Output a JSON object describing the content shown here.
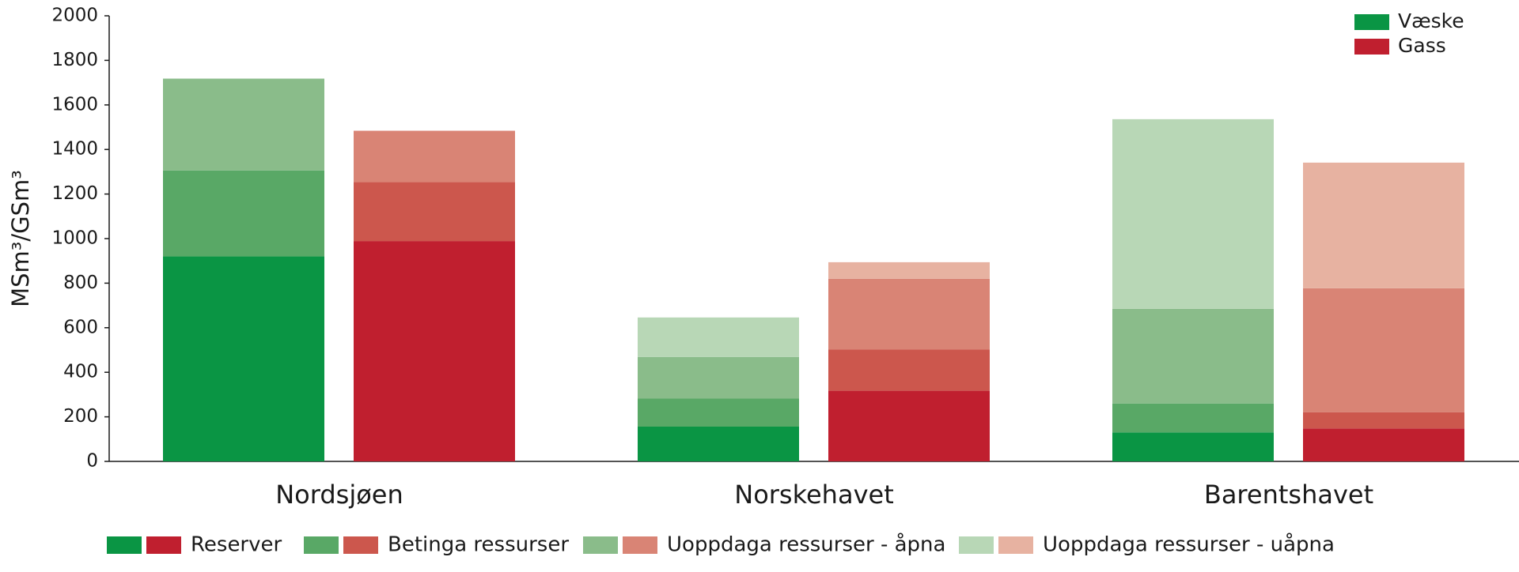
{
  "chart_data": {
    "type": "grouped-stacked-bar",
    "y_label": "MSm³/GSm³",
    "categories": [
      "Nordsjøen",
      "Norskehavet",
      "Barentshavet"
    ],
    "groups": [
      {
        "name": "Væske",
        "color": "#0a9544"
      },
      {
        "name": "Gass",
        "color": "#c01f2f"
      }
    ],
    "series": [
      {
        "name": "Reserver",
        "colors": [
          "#0a9544",
          "#c01f2f"
        ],
        "values": [
          [
            920,
            156,
            130
          ],
          [
            989,
            317,
            148
          ]
        ]
      },
      {
        "name": "Betinga ressurser",
        "colors": [
          "#59a866",
          "#cc574d"
        ],
        "values": [
          [
            386,
            126,
            130
          ],
          [
            265,
            186,
            73
          ]
        ]
      },
      {
        "name": "Uoppdaga ressurser - åpna",
        "colors": [
          "#8abc8a",
          "#d98475"
        ],
        "values": [
          [
            412,
            187,
            425
          ],
          [
            230,
            317,
            556
          ]
        ]
      },
      {
        "name": "Uoppdaga ressurser - uåpna",
        "colors": [
          "#b8d7b6",
          "#e7b2a1"
        ],
        "values": [
          [
            0,
            177,
            851
          ],
          [
            0,
            74,
            564
          ]
        ]
      }
    ],
    "ylim": [
      0,
      2000
    ],
    "yticks": [
      0,
      200,
      400,
      600,
      800,
      1000,
      1200,
      1400,
      1600,
      1800,
      2000
    ]
  }
}
